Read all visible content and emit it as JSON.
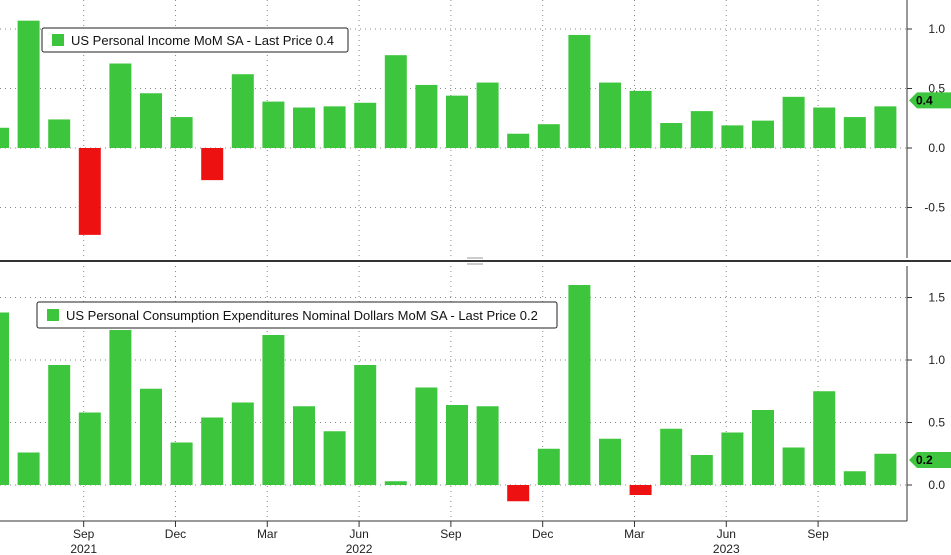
{
  "chart_data": [
    {
      "type": "bar",
      "legend": "US Personal Income MoM SA - Last Price 0.4",
      "last_value_label": "0.4",
      "last_value": 0.4,
      "y_ticks": [
        -0.5,
        0.0,
        0.5,
        1.0
      ],
      "y_tick_labels": [
        "-0.5",
        "0.0",
        "0.5",
        "1.0"
      ],
      "ylim": [
        -0.9,
        1.2
      ],
      "values": [
        0.17,
        1.07,
        0.24,
        -0.73,
        0.71,
        0.46,
        0.26,
        -0.27,
        0.62,
        0.39,
        0.34,
        0.35,
        0.38,
        0.78,
        0.53,
        0.44,
        0.55,
        0.12,
        0.2,
        0.95,
        0.55,
        0.48,
        0.21,
        0.31,
        0.19,
        0.23,
        0.43,
        0.34,
        0.26,
        0.35
      ],
      "colors": {
        "positive": "#3dc63d",
        "negative": "#ee1111"
      },
      "grid": true
    },
    {
      "type": "bar",
      "legend": "US Personal Consumption Expenditures Nominal Dollars MoM SA - Last Price 0.2",
      "last_value_label": "0.2",
      "last_value": 0.2,
      "y_ticks": [
        0.0,
        0.5,
        1.0,
        1.5
      ],
      "y_tick_labels": [
        "0.0",
        "0.5",
        "1.0",
        "1.5"
      ],
      "ylim": [
        -0.3,
        1.75
      ],
      "values": [
        1.38,
        0.26,
        0.96,
        0.58,
        1.24,
        0.77,
        0.34,
        0.54,
        0.66,
        1.2,
        0.63,
        0.43,
        0.96,
        0.03,
        0.78,
        0.64,
        0.63,
        -0.13,
        0.29,
        1.6,
        0.37,
        -0.08,
        0.45,
        0.24,
        0.42,
        0.6,
        0.3,
        0.75,
        0.11,
        0.25
      ],
      "colors": {
        "positive": "#3dc63d",
        "negative": "#ee1111"
      },
      "grid": true
    }
  ],
  "x_axis": {
    "month_ticks": [
      {
        "label": "Sep",
        "index": 2.8
      },
      {
        "label": "Dec",
        "index": 5.8
      },
      {
        "label": "Mar",
        "index": 8.8
      },
      {
        "label": "Jun",
        "index": 11.8
      },
      {
        "label": "Sep",
        "index": 14.8
      },
      {
        "label": "Dec",
        "index": 17.8
      },
      {
        "label": "Mar",
        "index": 20.8
      },
      {
        "label": "Jun",
        "index": 23.8
      },
      {
        "label": "Sep",
        "index": 26.8
      }
    ],
    "years": [
      {
        "label": "2021",
        "index": 2.8
      },
      {
        "label": "2022",
        "index": 11.8
      },
      {
        "label": "2023",
        "index": 23.8
      }
    ]
  },
  "colors": {
    "axis": "#333333",
    "grid": "#888888",
    "divider": "#333333",
    "last_value_bg": "#3dc63d",
    "legend_swatch": "#3dc63d"
  }
}
